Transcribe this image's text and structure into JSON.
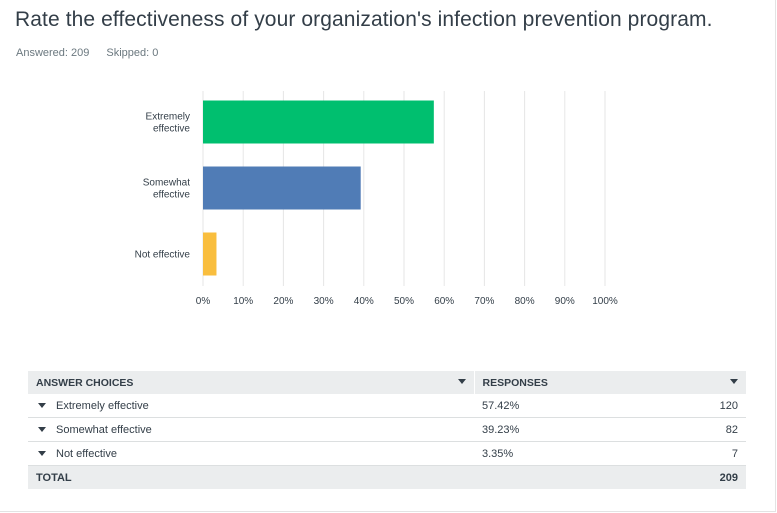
{
  "question": {
    "title": "Rate the effectiveness of your organization's infection prevention program."
  },
  "stats": {
    "answered_label": "Answered:",
    "answered_value": "209",
    "skipped_label": "Skipped:",
    "skipped_value": "0"
  },
  "chart_data": {
    "type": "bar",
    "orientation": "horizontal",
    "categories": [
      [
        "Extremely",
        "effective"
      ],
      [
        "Somewhat",
        "effective"
      ],
      [
        "Not effective"
      ]
    ],
    "values": [
      57.42,
      39.23,
      3.35
    ],
    "colors": [
      "#00bf6f",
      "#507cb6",
      "#f9be3e"
    ],
    "xlim": [
      0,
      100
    ],
    "ticks": [
      "0%",
      "10%",
      "20%",
      "30%",
      "40%",
      "50%",
      "60%",
      "70%",
      "80%",
      "90%",
      "100%"
    ],
    "grid": true
  },
  "table": {
    "headers": {
      "choices": "ANSWER CHOICES",
      "responses": "RESPONSES"
    },
    "rows": [
      {
        "choice": "Extremely effective",
        "percent": "57.42%",
        "count": "120"
      },
      {
        "choice": "Somewhat effective",
        "percent": "39.23%",
        "count": "82"
      },
      {
        "choice": "Not effective",
        "percent": "3.35%",
        "count": "7"
      }
    ],
    "total": {
      "label": "TOTAL",
      "count": "209"
    }
  }
}
